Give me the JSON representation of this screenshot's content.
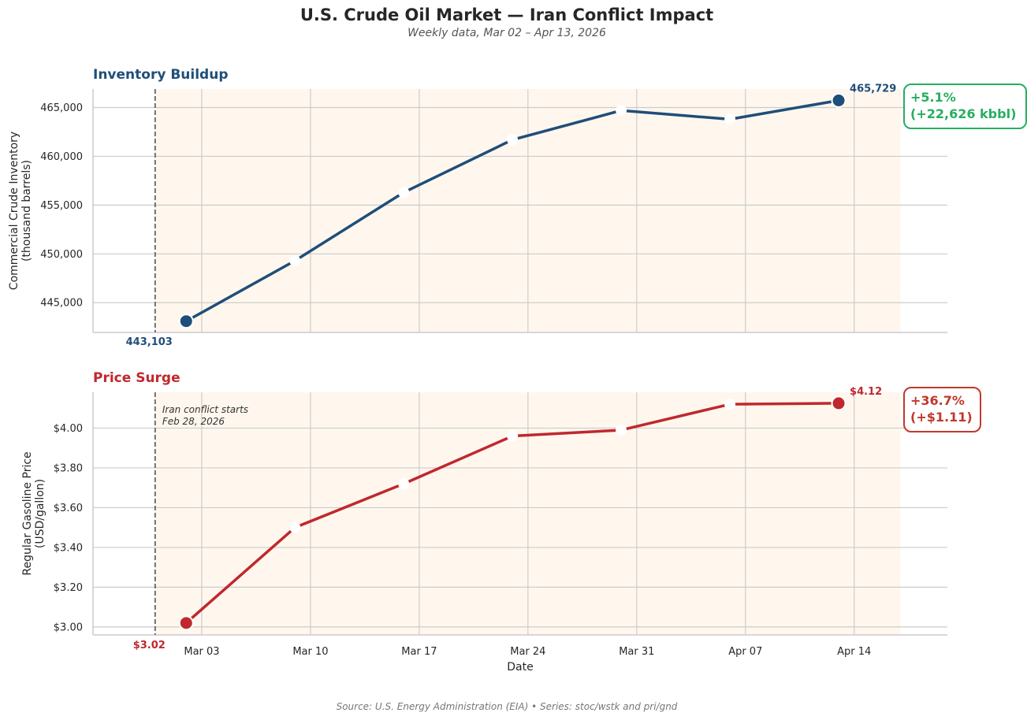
{
  "title": "U.S. Crude Oil Market — Iran Conflict Impact",
  "subtitle": "Weekly data, Mar 02 – Apr 13, 2026",
  "source": "Source: U.S. Energy Administration (EIA)  •  Series: stoc/wstk and pri/gnd",
  "colors": {
    "inventory": "#1f4e79",
    "price": "#c0282e",
    "inventory_badge": "#27ae60",
    "price_badge": "#c0392b",
    "shade": "#fff7ee"
  },
  "chart_data": [
    {
      "type": "line",
      "panel_title": "Inventory Buildup",
      "ylabel": [
        "Commercial Crude Inventory",
        "(thousand barrels)"
      ],
      "x": [
        "2026-03-02",
        "2026-03-09",
        "2026-03-16",
        "2026-03-23",
        "2026-03-30",
        "2026-04-06",
        "2026-04-13"
      ],
      "values": [
        443103,
        449300,
        456300,
        461700,
        464700,
        463800,
        465729
      ],
      "ylim": [
        441950,
        466900
      ],
      "yticks": [
        445000,
        450000,
        455000,
        460000,
        465000
      ],
      "ytick_labels": [
        "445,000",
        "450,000",
        "455,000",
        "460,000",
        "465,000"
      ],
      "start_label": "443,103",
      "end_label": "465,729",
      "change_badge": [
        "+5.1%",
        "(+22,626 kbbl)"
      ],
      "grid": true
    },
    {
      "type": "line",
      "panel_title": "Price Surge",
      "ylabel": [
        "Regular Gasoline Price",
        "(USD/gallon)"
      ],
      "xlabel": "Date",
      "x": [
        "2026-03-02",
        "2026-03-09",
        "2026-03-16",
        "2026-03-23",
        "2026-03-30",
        "2026-04-06",
        "2026-04-13"
      ],
      "values": [
        3.02,
        3.5,
        3.72,
        3.96,
        3.99,
        4.12,
        4.125
      ],
      "ylim": [
        2.96,
        4.18
      ],
      "yticks": [
        3.0,
        3.2,
        3.4,
        3.6,
        3.8,
        4.0
      ],
      "ytick_labels": [
        "$3.00",
        "$3.20",
        "$3.40",
        "$3.60",
        "$3.80",
        "$4.00"
      ],
      "start_label": "$3.02",
      "end_label": "$4.12",
      "change_badge": [
        "+36.7%",
        "(+$1.11)"
      ],
      "event_annotation": [
        "Iran conflict starts",
        "Feb 28, 2026"
      ],
      "grid": true
    }
  ],
  "x_axis": {
    "ticks": [
      "2026-03-03",
      "2026-03-10",
      "2026-03-17",
      "2026-03-24",
      "2026-03-31",
      "2026-04-07",
      "2026-04-14"
    ],
    "tick_labels": [
      "Mar 03",
      "Mar 10",
      "Mar 17",
      "Mar 24",
      "Mar 31",
      "Apr 07",
      "Apr 14"
    ],
    "range": [
      "2026-02-24",
      "2026-04-20"
    ],
    "event_date": "2026-02-28",
    "shade_range": [
      "2026-02-28",
      "2026-04-17"
    ]
  }
}
